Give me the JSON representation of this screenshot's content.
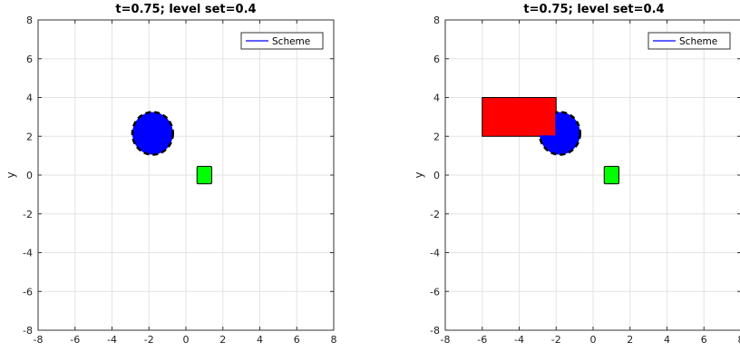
{
  "chart_data": [
    {
      "type": "scatter",
      "title": "t=0.75; level set=0.4",
      "xlabel": "",
      "ylabel": "y",
      "xlim": [
        -8,
        8
      ],
      "ylim": [
        -8,
        8
      ],
      "xticks": [
        "-8",
        "-6",
        "-4",
        "-2",
        "0",
        "2",
        "4",
        "6",
        "8"
      ],
      "yticks": [
        "8",
        "6",
        "4",
        "2",
        "0",
        "-2",
        "-4",
        "-6",
        "-8"
      ],
      "grid": true,
      "legend": {
        "position": "top-right",
        "entries": [
          "Scheme"
        ]
      },
      "colors": {
        "set": "#0000ff",
        "target": "#00ff00",
        "obstacle": "#ff0000",
        "scheme_line": "#0000ff"
      },
      "reachable_set": {
        "shape": "disk",
        "center": [
          -1.8,
          2.15
        ],
        "radius": 1.1
      },
      "target": {
        "x": [
          0.6,
          1.4
        ],
        "y": [
          -0.45,
          0.45
        ]
      },
      "obstacle": null
    },
    {
      "type": "scatter",
      "title": "t=0.75; level set=0.4",
      "xlabel": "",
      "ylabel": "y",
      "xlim": [
        -8,
        8
      ],
      "ylim": [
        -8,
        8
      ],
      "xticks": [
        "-8",
        "-6",
        "-4",
        "-2",
        "0",
        "2",
        "4",
        "6",
        "8"
      ],
      "yticks": [
        "8",
        "6",
        "4",
        "2",
        "0",
        "-2",
        "-4",
        "-6",
        "-8"
      ],
      "grid": true,
      "legend": {
        "position": "top-right",
        "entries": [
          "Scheme"
        ]
      },
      "colors": {
        "set": "#0000ff",
        "target": "#00ff00",
        "obstacle": "#ff0000",
        "scheme_line": "#0000ff"
      },
      "reachable_set": {
        "shape": "clipped-disk",
        "center": [
          -1.8,
          2.15
        ],
        "radius": 1.1
      },
      "target": {
        "x": [
          0.6,
          1.4
        ],
        "y": [
          -0.45,
          0.45
        ]
      },
      "obstacle": {
        "x": [
          -6,
          -2
        ],
        "y": [
          2,
          4
        ]
      }
    }
  ]
}
